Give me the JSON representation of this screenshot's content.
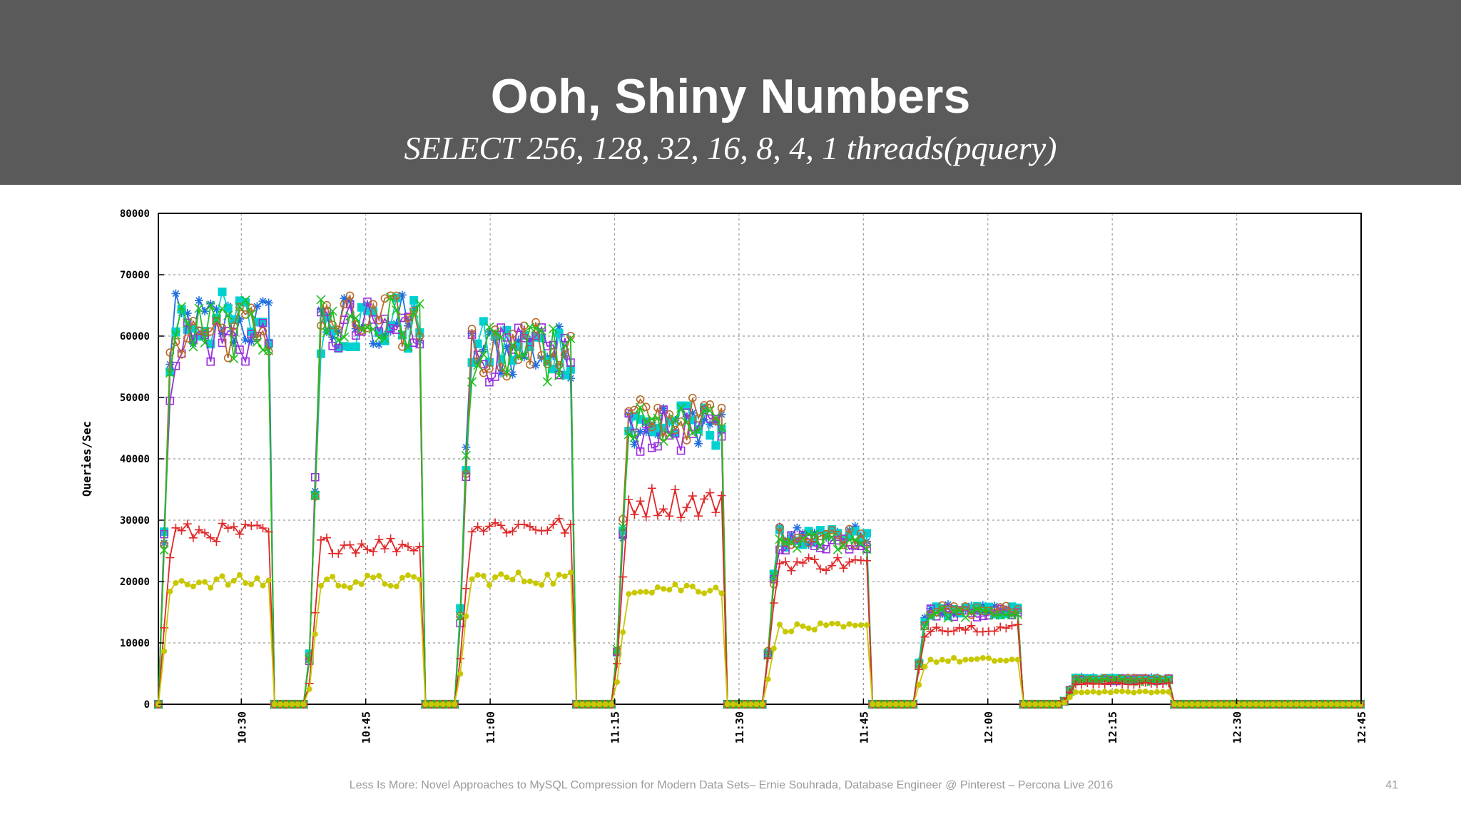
{
  "slide": {
    "title": "Ooh, Shiny Numbers",
    "subtitle": "SELECT 256, 128, 32, 16, 8, 4, 1 threads(pquery)",
    "footer": "Less Is More: Novel Approaches to MySQL Compression for Modern Data Sets– Ernie Souhrada, Database Engineer @ Pinterest – Percona Live 2016",
    "page_number": "41"
  },
  "chart_data": {
    "type": "line",
    "xlabel": "",
    "ylabel": "Queries/Sec",
    "ylim": [
      0,
      80000
    ],
    "yticks": [
      0,
      10000,
      20000,
      30000,
      40000,
      50000,
      60000,
      70000,
      80000
    ],
    "ytick_labels": [
      "0",
      "10000",
      "20000",
      "30000",
      "40000",
      "50000",
      "60000",
      "70000",
      "80000"
    ],
    "xlim": [
      "10:20",
      "12:45"
    ],
    "xticks": [
      "10:30",
      "10:45",
      "11:00",
      "11:15",
      "11:30",
      "11:45",
      "12:00",
      "12:15",
      "12:30",
      "12:45"
    ],
    "grid": true,
    "legend": "none",
    "segments": [
      {
        "start": "10:20",
        "end": "10:34"
      },
      {
        "start": "10:38",
        "end": "10:52"
      },
      {
        "start": "10:56",
        "end": "11:10"
      },
      {
        "start": "11:15",
        "end": "11:28"
      },
      {
        "start": "11:33",
        "end": "11:46"
      },
      {
        "start": "11:51",
        "end": "12:04"
      },
      {
        "start": "12:09",
        "end": "12:22"
      }
    ],
    "series": [
      {
        "color": "#1e6fe0",
        "marker": "star",
        "levels": [
          62000,
          62000,
          57500,
          46000,
          27500,
          15500,
          4200
        ]
      },
      {
        "color": "#00d0d0",
        "marker": "filled-square",
        "levels": [
          62500,
          62000,
          58000,
          45500,
          27000,
          15200,
          4100
        ]
      },
      {
        "color": "#9a2ee0",
        "marker": "open-square",
        "levels": [
          59500,
          61000,
          57000,
          44500,
          26500,
          15000,
          4000
        ]
      },
      {
        "color": "#b86a2a",
        "marker": "open-circle",
        "levels": [
          61000,
          62000,
          58000,
          46500,
          27500,
          15300,
          4100
        ]
      },
      {
        "color": "#20c020",
        "marker": "x",
        "levels": [
          61000,
          62000,
          57000,
          45000,
          26500,
          14800,
          3900
        ]
      },
      {
        "color": "#e02828",
        "marker": "plus",
        "levels": [
          28000,
          26000,
          29000,
          33000,
          23000,
          12500,
          3400
        ]
      },
      {
        "color": "#c8c800",
        "marker": "filled-circle",
        "levels": [
          20000,
          20000,
          20500,
          19000,
          12500,
          7200,
          2000
        ]
      }
    ]
  }
}
